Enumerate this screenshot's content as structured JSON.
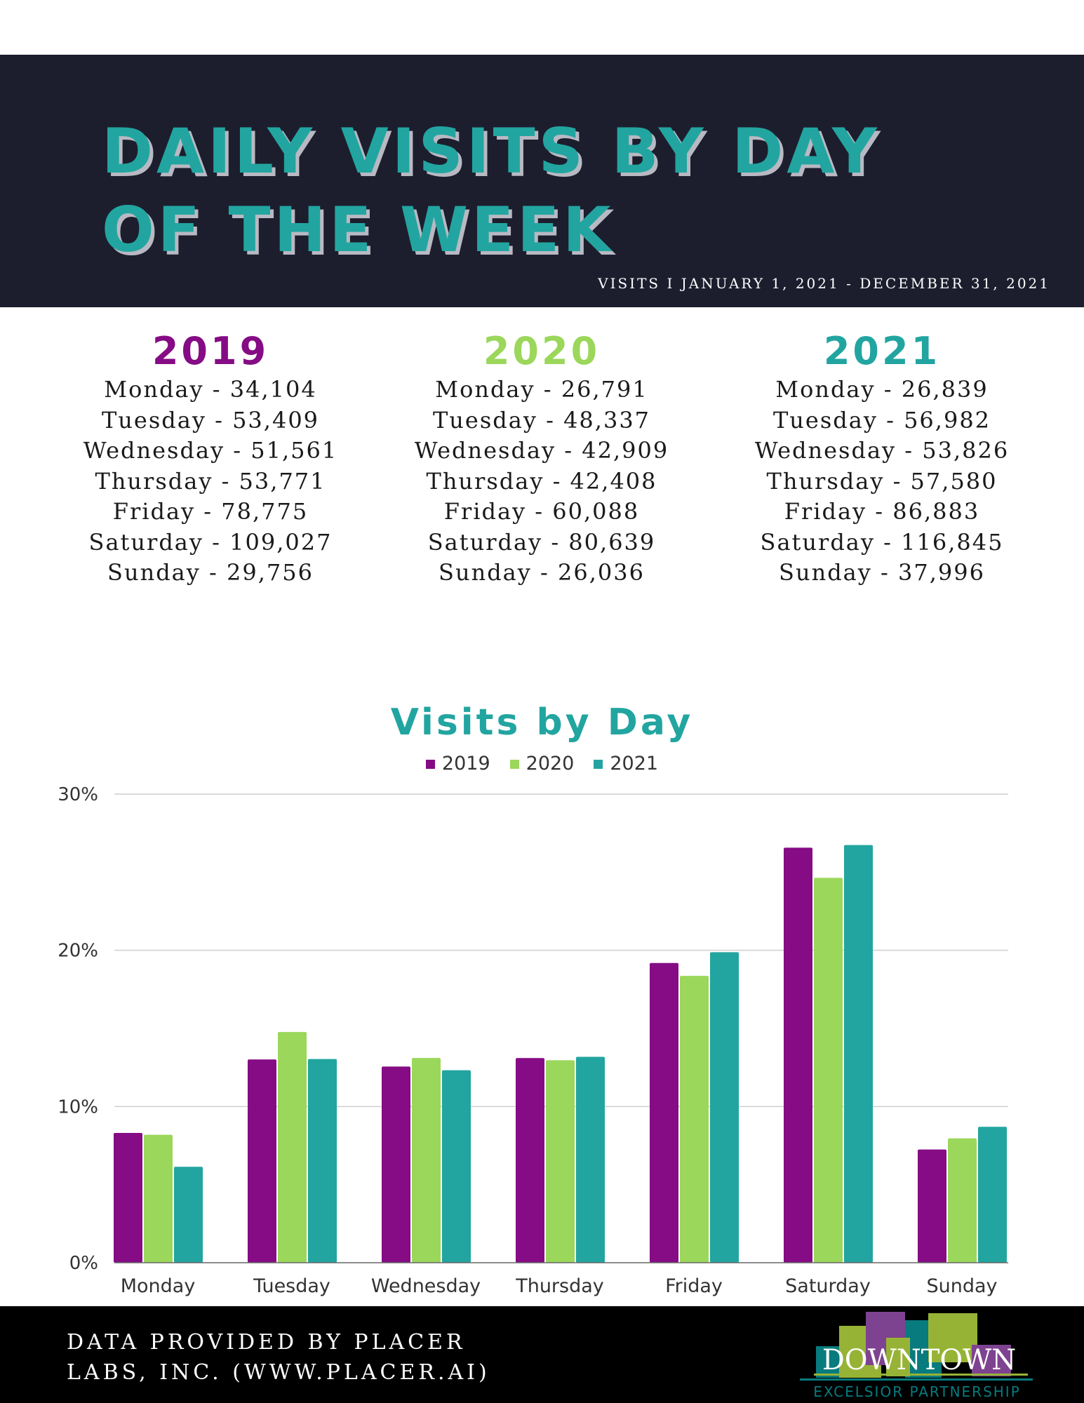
{
  "header": {
    "title_line1": "DAILY VISITS BY DAY",
    "title_line2": "OF THE WEEK",
    "subtitle": "VISITS I JANUARY 1, 2021 - DECEMBER 31, 2021"
  },
  "years": [
    {
      "year": "2019",
      "color": "#850c85",
      "lines": [
        "Monday - 34,104",
        "Tuesday - 53,409",
        "Wednesday - 51,561",
        "Thursday - 53,771",
        "Friday - 78,775",
        "Saturday - 109,027",
        "Sunday - 29,756"
      ]
    },
    {
      "year": "2020",
      "color": "#9bd75b",
      "lines": [
        "Monday - 26,791",
        "Tuesday - 48,337",
        "Wednesday - 42,909",
        "Thursday - 42,408",
        "Friday - 60,088",
        "Saturday - 80,639",
        "Sunday - 26,036"
      ]
    },
    {
      "year": "2021",
      "color": "#22a5a0",
      "lines": [
        "Monday - 26,839",
        "Tuesday - 56,982",
        "Wednesday - 53,826",
        "Thursday - 57,580",
        "Friday - 86,883",
        "Saturday - 116,845",
        "Sunday - 37,996"
      ]
    }
  ],
  "chart_data": {
    "type": "bar",
    "title": "Visits by Day",
    "categories": [
      "Monday",
      "Tuesday",
      "Wednesday",
      "Thursday",
      "Friday",
      "Saturday",
      "Sunday"
    ],
    "series": [
      {
        "name": "2019",
        "color": "#850c85",
        "values": [
          8.31,
          13.01,
          12.56,
          13.1,
          19.19,
          26.57,
          7.25
        ]
      },
      {
        "name": "2020",
        "color": "#9bd75b",
        "values": [
          8.19,
          14.77,
          13.11,
          12.96,
          18.36,
          24.64,
          7.96
        ]
      },
      {
        "name": "2021",
        "color": "#22a5a0",
        "values": [
          6.14,
          13.04,
          12.32,
          13.18,
          19.88,
          26.74,
          8.7
        ]
      }
    ],
    "ylim": [
      0,
      30
    ],
    "yticks": [
      "0%",
      "10%",
      "20%",
      "30%"
    ],
    "grid": true,
    "legend": "top"
  },
  "footer": {
    "line1": "DATA PROVIDED BY PLACER",
    "line2": "LABS, INC. (WWW.PLACER.AI)",
    "logo_text": "DOWNTOWN",
    "logo_subtext": "EXCELSIOR PARTNERSHIP"
  }
}
